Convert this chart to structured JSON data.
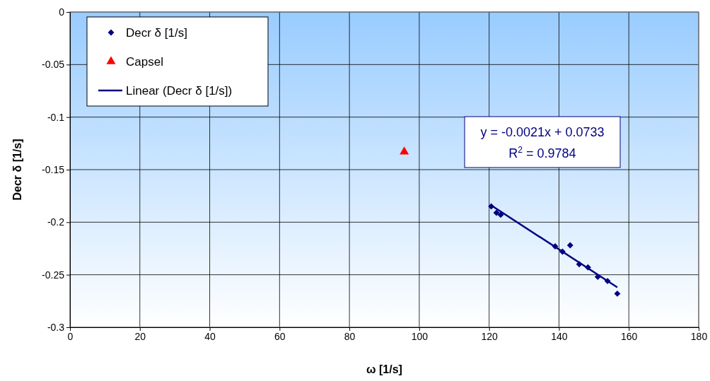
{
  "chart_data": {
    "type": "scatter",
    "xlabel": "ω [1/s]",
    "ylabel": "Decr δ [1/s]",
    "xlim": [
      0,
      180
    ],
    "xticks": [
      0,
      20,
      40,
      60,
      80,
      100,
      120,
      140,
      160,
      180
    ],
    "ylim": [
      -0.3,
      0
    ],
    "yticks": [
      -0.3,
      -0.25,
      -0.2,
      -0.15,
      -0.1,
      -0.05,
      0
    ],
    "grid": true,
    "legend": "top left",
    "series": [
      {
        "name": "Decr δ [1/s]",
        "marker": "diamond",
        "color": "#000080",
        "x": [
          120.6,
          122.1,
          123.3,
          138.9,
          141.0,
          143.2,
          145.8,
          148.3,
          151.1,
          153.9,
          156.7
        ],
        "values": [
          -0.185,
          -0.191,
          -0.193,
          -0.223,
          -0.228,
          -0.222,
          -0.24,
          -0.243,
          -0.252,
          -0.256,
          -0.268
        ]
      },
      {
        "name": "Capsel",
        "marker": "triangle",
        "color": "#ff0000",
        "x": [
          95.7
        ],
        "values": [
          -0.133
        ]
      },
      {
        "name": "Linear (Decr δ [1/s])",
        "type": "line",
        "marker": "none",
        "line_style": "solid",
        "color": "#000080",
        "x": [
          120.6,
          156.7
        ],
        "values": [
          -0.184,
          -0.262
        ]
      }
    ],
    "annotations": [
      "y = -0.0021x + 0.0733",
      "R$^{2}$ = 0.9784"
    ]
  }
}
